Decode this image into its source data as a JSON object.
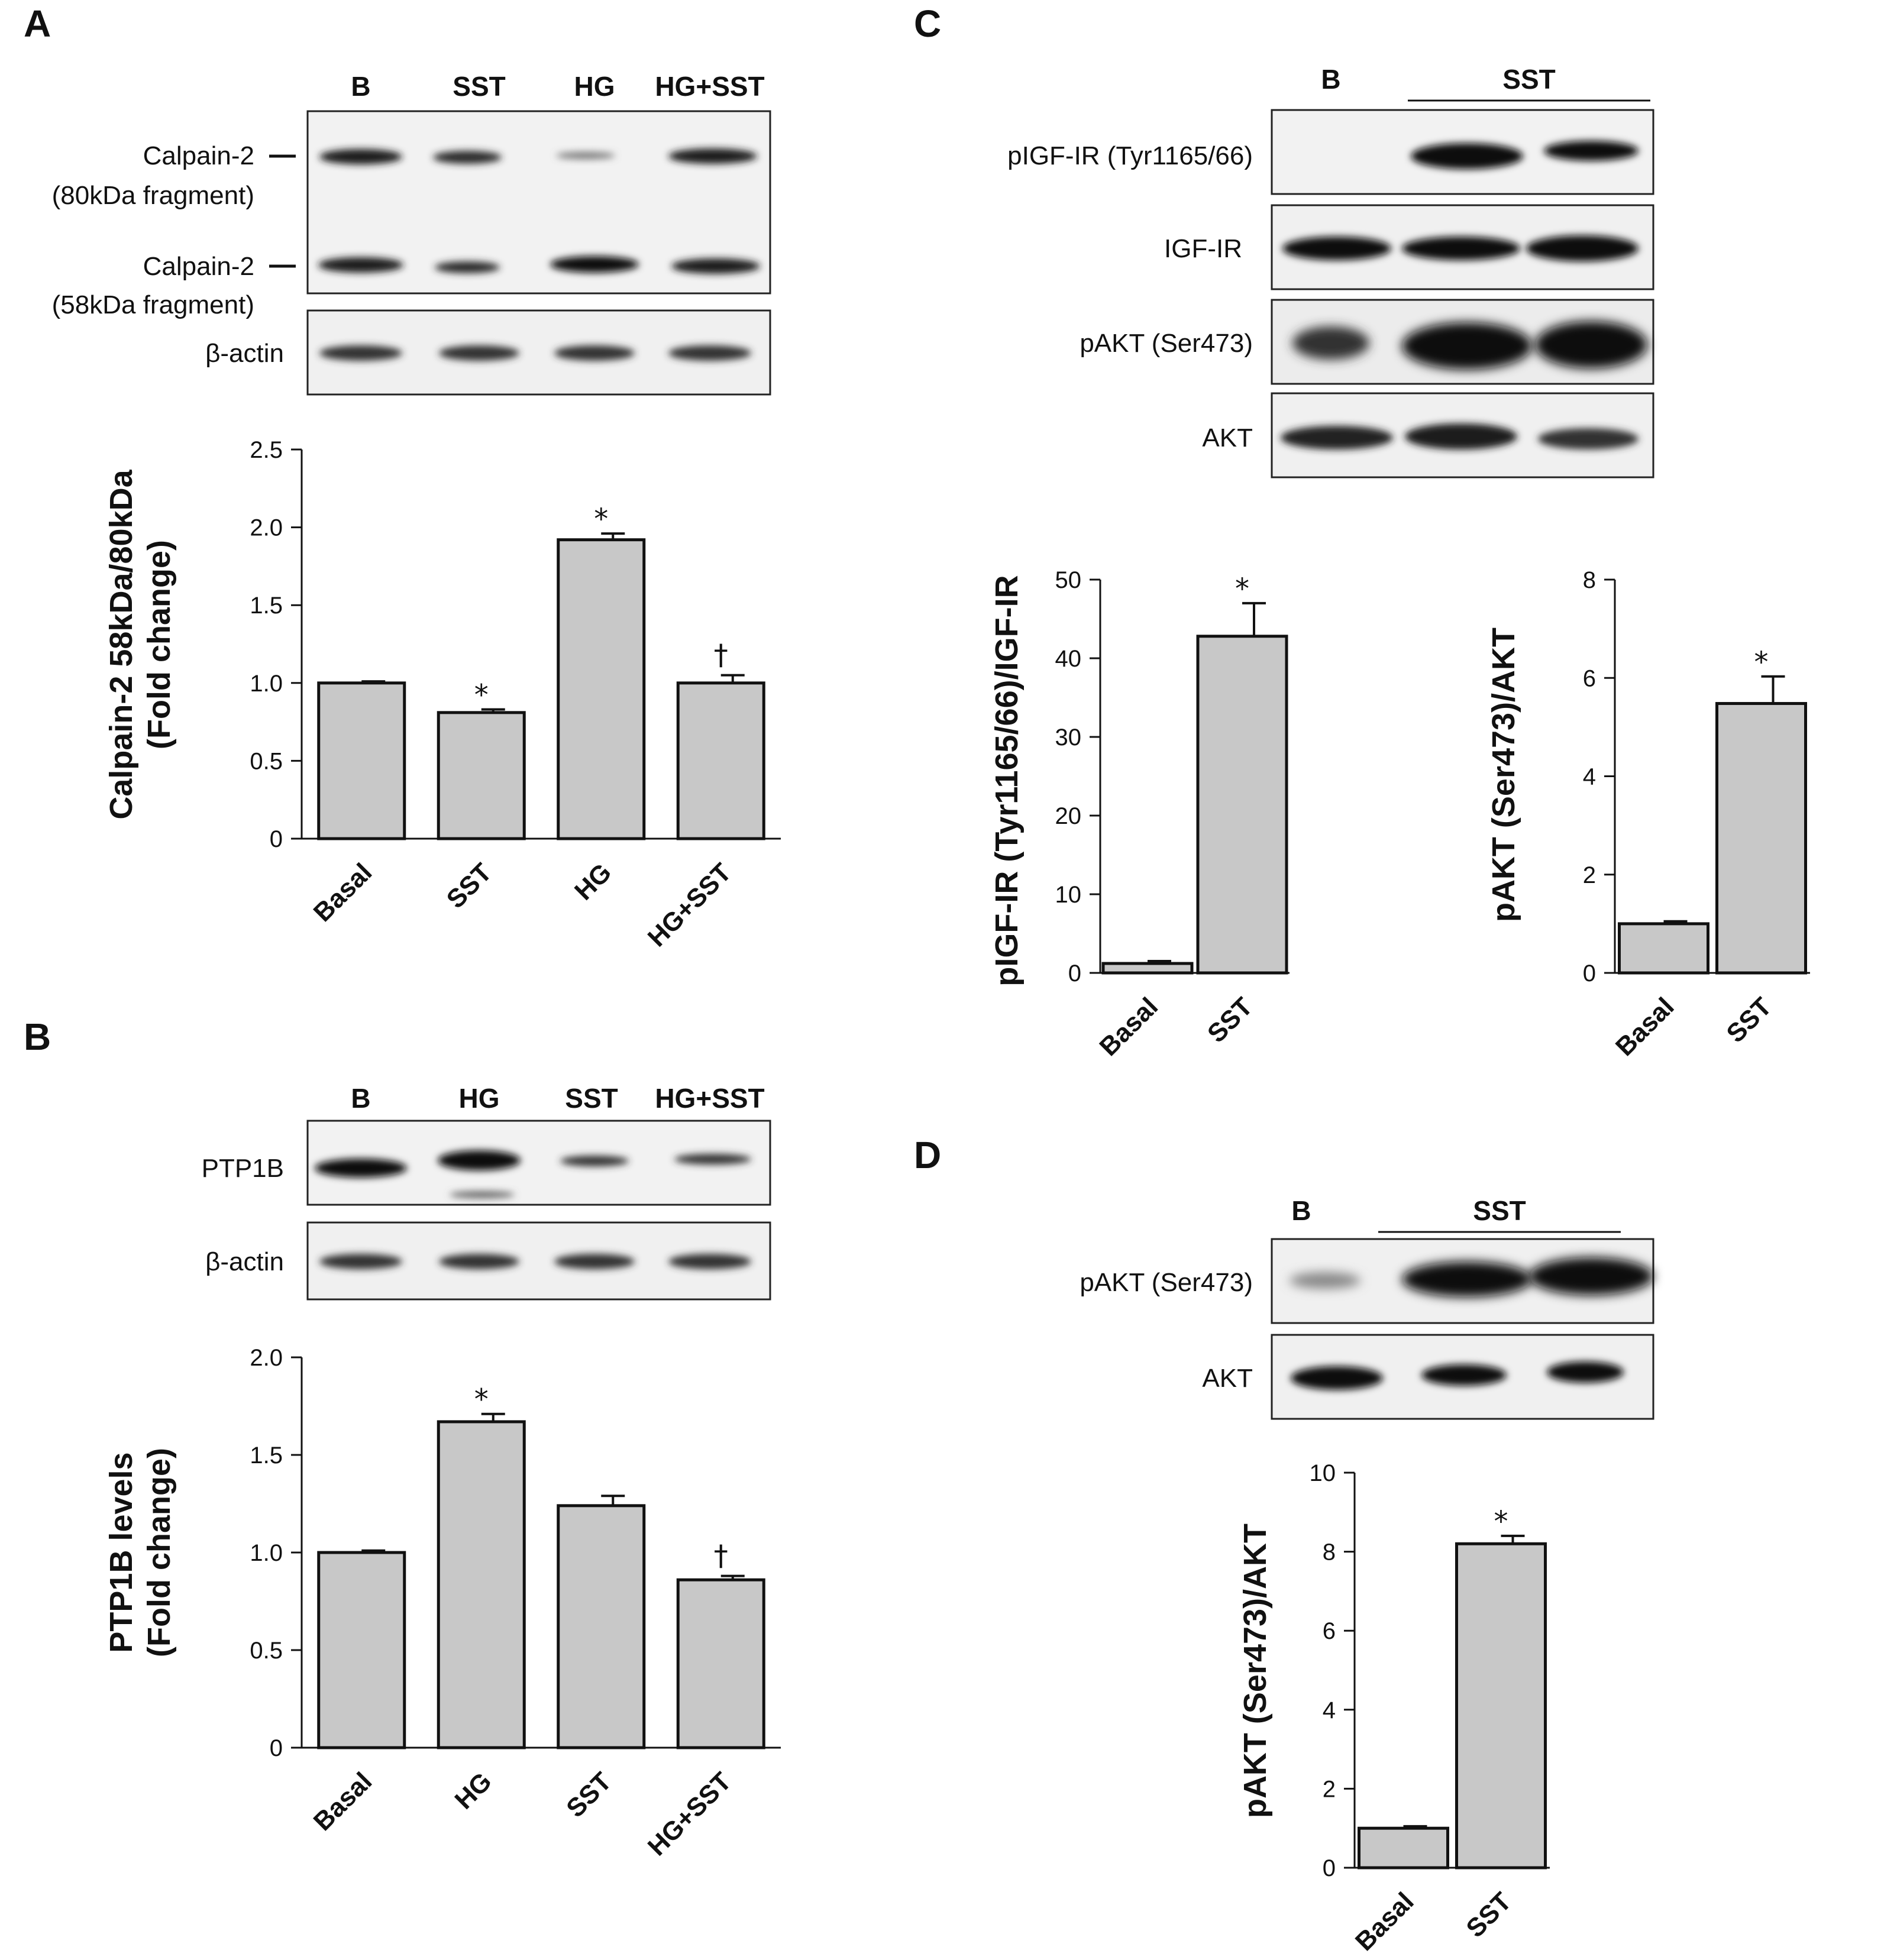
{
  "panels": {
    "A": {
      "letter": "A",
      "lanes": [
        "B",
        "SST",
        "HG",
        "HG+SST"
      ],
      "blot_labels": [
        "Calpain-2",
        "(80kDa fragment)",
        "Calpain-2",
        "(58kDa fragment)",
        "β-actin"
      ]
    },
    "B": {
      "letter": "B",
      "lanes": [
        "B",
        "HG",
        "SST",
        "HG+SST"
      ],
      "blot_labels": [
        "PTP1B",
        "β-actin"
      ]
    },
    "C": {
      "letter": "C",
      "lane_b": "B",
      "lane_sst": "SST",
      "blot_labels": [
        "pIGF-IR (Tyr1165/66)",
        "IGF-IR",
        "pAKT (Ser473)",
        "AKT"
      ]
    },
    "D": {
      "letter": "D",
      "lane_b": "B",
      "lane_sst": "SST",
      "blot_labels": [
        "pAKT (Ser473)",
        "AKT"
      ]
    }
  },
  "chart_data": [
    {
      "id": "A",
      "type": "bar",
      "categories": [
        "Basal",
        "SST",
        "HG",
        "HG+SST"
      ],
      "values": [
        1.0,
        0.81,
        1.92,
        1.0
      ],
      "errors": [
        0.01,
        0.02,
        0.04,
        0.05
      ],
      "significance": [
        "",
        "*",
        "*",
        "†"
      ],
      "ylabel_lines": [
        "Calpain-2 58kDa/80kDa",
        "(Fold change)"
      ],
      "ylim": [
        0,
        2.5
      ],
      "yticks": [
        0,
        0.5,
        1.0,
        1.5,
        2.0,
        2.5
      ],
      "ytick_labels": [
        "0",
        "0.5",
        "1.0",
        "1.5",
        "2.0",
        "2.5"
      ],
      "bar_color": "#c8c8c8"
    },
    {
      "id": "B",
      "type": "bar",
      "categories": [
        "Basal",
        "HG",
        "SST",
        "HG+SST"
      ],
      "values": [
        1.0,
        1.67,
        1.24,
        0.86
      ],
      "errors": [
        0.01,
        0.04,
        0.05,
        0.02
      ],
      "significance": [
        "",
        "*",
        "",
        "†"
      ],
      "ylabel_lines": [
        "PTP1B levels",
        "(Fold change)"
      ],
      "ylim": [
        0,
        2.0
      ],
      "yticks": [
        0,
        0.5,
        1.0,
        1.5,
        2.0
      ],
      "ytick_labels": [
        "0",
        "0.5",
        "1.0",
        "1.5",
        "2.0"
      ],
      "bar_color": "#c8c8c8"
    },
    {
      "id": "C1",
      "type": "bar",
      "categories": [
        "Basal",
        "SST"
      ],
      "values": [
        1.2,
        42.8
      ],
      "errors": [
        0.3,
        4.2
      ],
      "significance": [
        "",
        "*"
      ],
      "ylabel_lines": [
        "pIGF-IR (Tyr1165/66)/IGF-IR"
      ],
      "ylim": [
        0,
        50
      ],
      "yticks": [
        0,
        10,
        20,
        30,
        40,
        50
      ],
      "ytick_labels": [
        "0",
        "10",
        "20",
        "30",
        "40",
        "50"
      ],
      "bar_color": "#c8c8c8"
    },
    {
      "id": "C2",
      "type": "bar",
      "categories": [
        "Basal",
        "SST"
      ],
      "values": [
        1.0,
        5.48
      ],
      "errors": [
        0.05,
        0.55
      ],
      "significance": [
        "",
        "*"
      ],
      "ylabel_lines": [
        "pAKT (Ser473)/AKT"
      ],
      "ylim": [
        0,
        8
      ],
      "yticks": [
        0,
        2,
        4,
        6,
        8
      ],
      "ytick_labels": [
        "0",
        "2",
        "4",
        "6",
        "8"
      ],
      "bar_color": "#c8c8c8"
    },
    {
      "id": "D",
      "type": "bar",
      "categories": [
        "Basal",
        "SST"
      ],
      "values": [
        1.0,
        8.2
      ],
      "errors": [
        0.05,
        0.2
      ],
      "significance": [
        "",
        "*"
      ],
      "ylabel_lines": [
        "pAKT (Ser473)/AKT"
      ],
      "ylim": [
        0,
        10
      ],
      "yticks": [
        0,
        2,
        4,
        6,
        8,
        10
      ],
      "ytick_labels": [
        "0",
        "2",
        "4",
        "6",
        "8",
        "10"
      ],
      "bar_color": "#c8c8c8"
    }
  ]
}
